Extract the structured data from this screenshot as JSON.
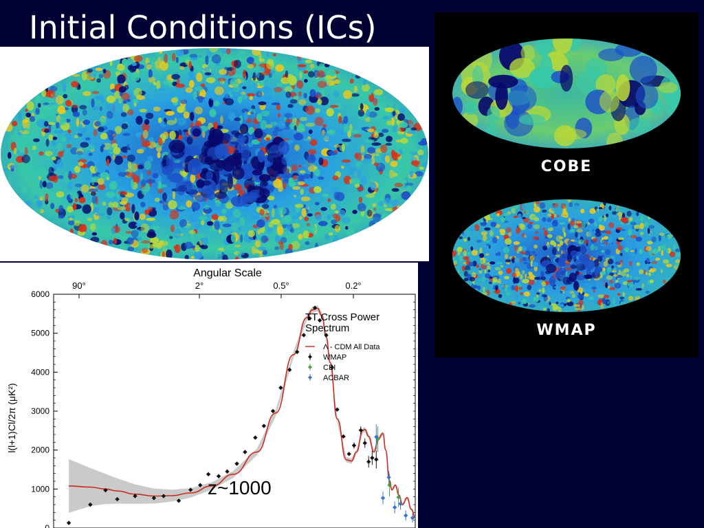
{
  "slide": {
    "title": "Initial Conditions (ICs)",
    "background": "#000033"
  },
  "maps": {
    "cobe_label": "COBE",
    "wmap_label": "WMAP",
    "colormap": [
      "#08086b",
      "#1c50c8",
      "#2aa0e0",
      "#38c8a8",
      "#b8d838",
      "#e8c820",
      "#d83018"
    ]
  },
  "chart_data": {
    "type": "scatter",
    "title": "TT Cross Power\nSpectrum",
    "xlabel": "",
    "ylabel": "l(l+1)Cl/2π (μK²)",
    "top_axis_label": "Angular Scale",
    "top_ticks": [
      "90°",
      "2°",
      "0.5°",
      "0.2°"
    ],
    "x_scale": "log",
    "xlim": [
      1.5,
      1400
    ],
    "ylim": [
      0,
      6000
    ],
    "yticks": [
      0,
      1000,
      2000,
      3000,
      4000,
      5000,
      6000
    ],
    "annotation": "z~1000",
    "legend_position": "top-right",
    "legend": [
      "Λ - CDM All Data",
      "WMAP",
      "CBI",
      "ACBAR"
    ],
    "series": [
      {
        "name": "Λ - CDM All Data",
        "kind": "line",
        "color": "#cc2a1e",
        "x": [
          2,
          3,
          4,
          5,
          7,
          10,
          14,
          20,
          30,
          45,
          70,
          100,
          140,
          180,
          200,
          220,
          240,
          260,
          280,
          320,
          380,
          420,
          460,
          520,
          540,
          580,
          640,
          700,
          760,
          800,
          860,
          900,
          960,
          1030,
          1100,
          1200,
          1300,
          1400
        ],
        "y": [
          1080,
          1050,
          1000,
          950,
          870,
          820,
          830,
          900,
          1080,
          1380,
          1950,
          2950,
          4450,
          5400,
          5600,
          5640,
          5450,
          4900,
          4250,
          2800,
          1750,
          1720,
          1950,
          2500,
          2530,
          2350,
          1950,
          2300,
          2430,
          2000,
          1220,
          980,
          1100,
          840,
          600,
          780,
          480,
          260
        ]
      },
      {
        "name": "WMAP",
        "kind": "points",
        "color": "#111111",
        "x": [
          2,
          3,
          4,
          5,
          7,
          10,
          12,
          16,
          20,
          24,
          28,
          34,
          40,
          48,
          56,
          68,
          80,
          95,
          110,
          130,
          150,
          170,
          190,
          210,
          230,
          260,
          290,
          320,
          360,
          400,
          440,
          500,
          540,
          580,
          620,
          670
        ],
        "y": [
          130,
          600,
          970,
          740,
          820,
          770,
          820,
          700,
          980,
          1100,
          1380,
          1330,
          1450,
          1650,
          1950,
          2320,
          2620,
          3000,
          3600,
          4060,
          4520,
          4950,
          5380,
          5650,
          5330,
          4950,
          4120,
          3040,
          2350,
          1900,
          2120,
          2510,
          2180,
          1700,
          1800,
          1760
        ],
        "err": [
          0,
          0,
          0,
          0,
          0,
          0,
          0,
          0,
          0,
          0,
          0,
          0,
          0,
          0,
          0,
          0,
          0,
          0,
          0,
          0,
          0,
          0,
          0,
          0,
          0,
          0,
          0,
          0,
          0,
          0,
          80,
          100,
          120,
          150,
          180,
          230
        ]
      },
      {
        "name": "CBI",
        "kind": "points",
        "color": "#4aa04a",
        "x": [
          690,
          860,
          1020
        ],
        "y": [
          2280,
          1100,
          790
        ],
        "err": [
          330,
          290,
          250
        ]
      },
      {
        "name": "ACBAR",
        "kind": "points",
        "color": "#3b74c8",
        "x": [
          670,
          760,
          850,
          950,
          1060,
          1170,
          1330
        ],
        "y": [
          2340,
          770,
          1300,
          530,
          620,
          320,
          260
        ],
        "err": [
          320,
          160,
          170,
          150,
          150,
          130,
          120
        ]
      }
    ]
  }
}
